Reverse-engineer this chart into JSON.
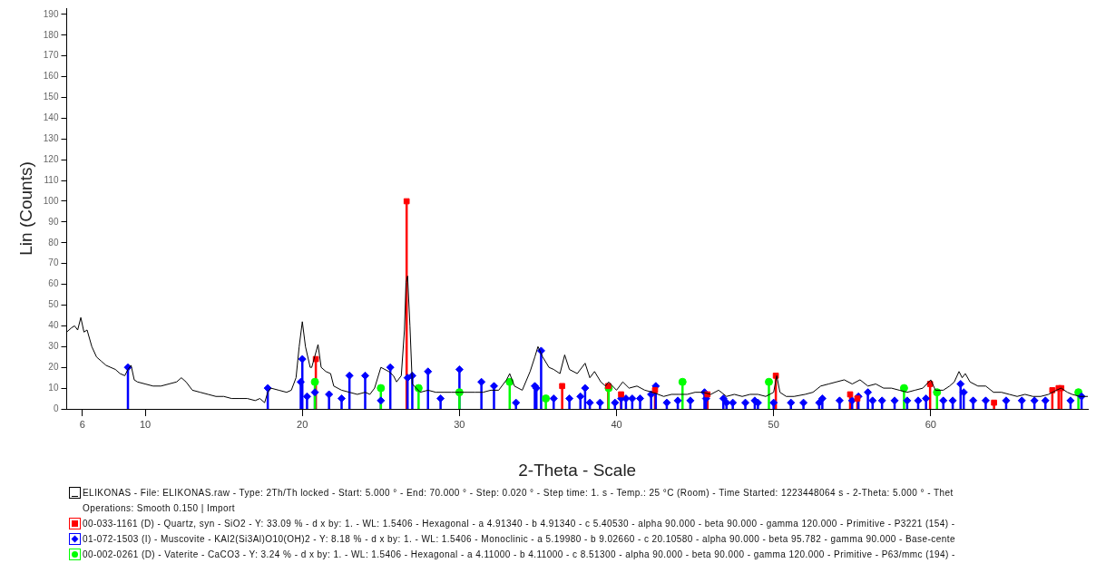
{
  "chart_data": {
    "type": "line",
    "xlabel": "2-Theta - Scale",
    "ylabel": "Lin (Counts)",
    "xlim": [
      5,
      70
    ],
    "ylim": [
      0,
      193
    ],
    "xticks": [
      6,
      10,
      20,
      30,
      40,
      50,
      60
    ],
    "yticks": [
      0,
      10,
      20,
      30,
      40,
      50,
      60,
      70,
      80,
      90,
      100,
      110,
      120,
      130,
      140,
      150,
      160,
      170,
      180,
      190
    ],
    "grid": false,
    "legend": "bottom",
    "series": [
      {
        "name": "ELIKONAS - File: ELIKONAS.raw - Type: 2Th/Th locked - Start: 5.000 ° - End: 70.000 ° - Step: 0.020 ° - Step time: 1. s - Temp.: 25 °C (Room) - Time Started: 1223448064 s - 2-Theta: 5.000 ° - Thet\nOperations: Smooth 0.150 | Import",
        "color": "#000000",
        "marker": "none",
        "x": [
          5.0,
          5.3,
          5.5,
          5.7,
          5.9,
          6.1,
          6.3,
          6.6,
          6.9,
          7.2,
          7.5,
          7.8,
          8.1,
          8.4,
          8.7,
          8.9,
          9.1,
          9.3,
          9.5,
          10.0,
          10.5,
          11.0,
          11.5,
          12.0,
          12.3,
          12.6,
          13.0,
          13.5,
          14.0,
          14.5,
          15.0,
          15.5,
          16.0,
          16.5,
          17.0,
          17.3,
          17.6,
          17.8,
          18.0,
          18.5,
          19.0,
          19.3,
          19.6,
          19.8,
          20.0,
          20.2,
          20.5,
          20.6,
          21.0,
          21.2,
          21.5,
          21.8,
          22.0,
          22.5,
          23.0,
          23.5,
          24.0,
          24.3,
          24.6,
          25.0,
          25.5,
          25.8,
          26.0,
          26.3,
          26.5,
          26.6,
          26.7,
          26.85,
          27.0,
          27.5,
          28.0,
          28.5,
          29.0,
          29.5,
          30.0,
          30.5,
          31.0,
          31.5,
          32.0,
          32.5,
          33.0,
          33.2,
          33.5,
          34.0,
          34.5,
          34.8,
          35.0,
          35.3,
          35.7,
          36.0,
          36.4,
          36.7,
          37.0,
          37.5,
          38.0,
          38.3,
          38.6,
          39.0,
          39.3,
          39.5,
          40.0,
          40.4,
          40.8,
          41.3,
          41.8,
          42.3,
          43.0,
          43.5,
          44.0,
          44.5,
          45.0,
          45.5,
          46.0,
          46.5,
          47.0,
          47.5,
          48.0,
          48.5,
          49.0,
          49.5,
          50.0,
          50.2,
          50.4,
          50.8,
          51.3,
          52.0,
          52.5,
          53.0,
          53.5,
          54.0,
          54.5,
          55.0,
          55.5,
          56.0,
          56.5,
          57.0,
          57.5,
          58.0,
          58.5,
          59.0,
          59.5,
          60.0,
          60.3,
          60.8,
          61.2,
          61.5,
          61.8,
          62.0,
          62.2,
          62.5,
          63.0,
          63.5,
          64.0,
          64.5,
          65.0,
          65.5,
          66.0,
          66.5,
          67.0,
          67.5,
          68.0,
          68.3,
          68.7,
          69.0,
          69.5,
          70.0
        ],
        "values": [
          37,
          39,
          40,
          38,
          44,
          37,
          38,
          30,
          25,
          23,
          21,
          20,
          19,
          17,
          16,
          19,
          21,
          14,
          13,
          12,
          11,
          11,
          12,
          13,
          15,
          13,
          9,
          8,
          7,
          6,
          6,
          5,
          5,
          5,
          4,
          5,
          3,
          8,
          10,
          9,
          8,
          9,
          15,
          30,
          42,
          30,
          20,
          20,
          31,
          20,
          18,
          17,
          11,
          9,
          8,
          7,
          8,
          7,
          10,
          20,
          18,
          16,
          13,
          16,
          38,
          61,
          64,
          40,
          12,
          8,
          9,
          8,
          8,
          8,
          8,
          8,
          8,
          8,
          9,
          9,
          14,
          17,
          11,
          9,
          18,
          25,
          30,
          25,
          20,
          19,
          17,
          26,
          19,
          17,
          22,
          15,
          18,
          13,
          11,
          13,
          9,
          13,
          10,
          11,
          9,
          8,
          6,
          7,
          7,
          7,
          8,
          8,
          7,
          9,
          6,
          7,
          6,
          7,
          7,
          6,
          8,
          16,
          8,
          6,
          6,
          7,
          8,
          11,
          12,
          13,
          14,
          12,
          14,
          11,
          12,
          10,
          10,
          9,
          8,
          9,
          10,
          14,
          9,
          9,
          11,
          13,
          18,
          15,
          17,
          13,
          11,
          11,
          8,
          8,
          7,
          6,
          7,
          6,
          6,
          7,
          9,
          10,
          8,
          7,
          6,
          6
        ]
      },
      {
        "name": "00-033-1161 (D) - Quartz, syn - SiO2 - Y: 33.09 % - d x by: 1. - WL: 1.5406 - Hexagonal - a 4.91340 - b 4.91340 - c 5.40530 - alpha 90.000 - beta 90.000 - gamma 120.000 - Primitive - P3221 (154) -",
        "type": "lollipop",
        "color": "#ff0000",
        "marker": "square",
        "x": [
          20.86,
          26.64,
          36.54,
          39.47,
          40.29,
          42.45,
          45.79,
          50.14,
          54.87,
          55.33,
          59.96,
          64.03,
          67.74,
          68.14,
          68.31
        ],
        "values": [
          24,
          100,
          11,
          11,
          7,
          9,
          7,
          16,
          7,
          5,
          12,
          3,
          9,
          10,
          10
        ]
      },
      {
        "name": "01-072-1503 (I) - Muscovite - KAl2(Si3Al)O10(OH)2 - Y: 8.18 % - d x by: 1. - WL: 1.5406 - Monoclinic - a 5.19980 - b 9.02660 - c 20.10580 - alpha 90.000 - beta 95.782 - gamma 90.000 - Base-cente",
        "type": "lollipop",
        "color": "#0000ff",
        "marker": "diamond",
        "x": [
          8.9,
          17.8,
          19.9,
          20.0,
          20.3,
          20.8,
          21.7,
          22.5,
          23.0,
          24.0,
          25.0,
          25.6,
          26.7,
          27.0,
          28.0,
          28.8,
          30.0,
          31.4,
          32.2,
          33.6,
          34.8,
          34.9,
          35.2,
          36.0,
          37.0,
          37.7,
          38.0,
          38.3,
          38.95,
          39.9,
          40.3,
          40.6,
          41.0,
          41.5,
          42.2,
          42.5,
          43.2,
          43.9,
          44.7,
          45.6,
          45.7,
          46.8,
          47.0,
          47.4,
          48.2,
          48.8,
          49.0,
          50.0,
          51.1,
          51.9,
          52.9,
          53.1,
          54.2,
          55.0,
          55.4,
          56.0,
          56.3,
          56.9,
          57.7,
          58.5,
          59.2,
          59.7,
          60.8,
          61.4,
          61.9,
          62.1,
          62.7,
          63.5,
          64.8,
          65.8,
          66.6,
          67.3,
          68.9,
          69.6
        ],
        "values": [
          20,
          10,
          13,
          24,
          6,
          8,
          7,
          5,
          16,
          16,
          4,
          20,
          15,
          16,
          18,
          5,
          19,
          13,
          11,
          3,
          11,
          10,
          28,
          5,
          5,
          6,
          10,
          3,
          3,
          3,
          5,
          5,
          5,
          5,
          7,
          11,
          3,
          4,
          4,
          8,
          5,
          5,
          3,
          3,
          3,
          4,
          3,
          3,
          3,
          3,
          3,
          5,
          4,
          4,
          6,
          8,
          4,
          4,
          4,
          4,
          4,
          5,
          4,
          4,
          12,
          8,
          4,
          4,
          4,
          4,
          4,
          4,
          4,
          6
        ]
      },
      {
        "name": "00-002-0261 (D) - Vaterite - CaCO3 - Y: 3.24 % - d x by: 1. - WL: 1.5406 - Hexagonal - a 4.11000 - b 4.11000 - c 8.51300 - alpha 90.000 - beta 90.000 - gamma 120.000 - Primitive - P63/mmc (194) -",
        "type": "lollipop",
        "color": "#00ff00",
        "marker": "circle",
        "x": [
          20.8,
          25.0,
          27.4,
          30.0,
          33.2,
          35.5,
          39.5,
          44.2,
          49.7,
          58.3,
          60.4,
          69.4
        ],
        "values": [
          13,
          10,
          10,
          8,
          13,
          5,
          10,
          13,
          13,
          10,
          8,
          8
        ]
      }
    ]
  }
}
